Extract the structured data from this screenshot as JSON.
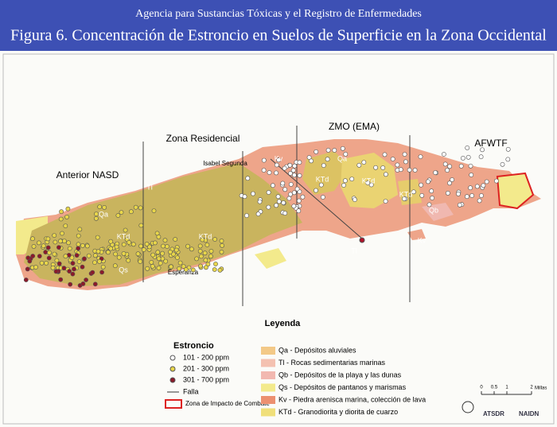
{
  "header": {
    "agency": "Agencia para Sustancias Tóxicas y el Registro de Enfermedades",
    "title": "Figura 6. Concentración de Estroncio en Suelos de Superficie en la Zona Occidental"
  },
  "map": {
    "zones": [
      "Anterior NASD",
      "Zona Residencial",
      "ZMO (EMA)",
      "AFWTF"
    ],
    "places": [
      "Isabel Segunda",
      "Esperanza"
    ],
    "units": [
      "Kv",
      "Qa",
      "KTd",
      "KTd",
      "KTd",
      "Qb",
      "Qa",
      "KTd",
      "KTd",
      "Qs",
      "Tl",
      "Tl",
      "Kv"
    ]
  },
  "legend": {
    "title": "Leyenda",
    "strontium": {
      "title": "Estroncio",
      "items": [
        "101 - 200 ppm",
        "201 - 300 ppm",
        "301 - 700 ppm"
      ],
      "fault": "Falla",
      "impact": "Zona de Impacto de Combate"
    },
    "geology": [
      "Qa - Depósitos aluviales",
      "Tl - Rocas sedimentarias marinas",
      "Qb - Depósitos de la playa y las dunas",
      "Qs - Depósitos de pantanos y marismas",
      "Kv - Piedra arenisca marina, colección de lava",
      "KTd - Granodiorita y diorita de cuarzo"
    ]
  },
  "scale": {
    "ticks": [
      "0",
      "0.5",
      "1",
      "2"
    ],
    "unit": "Millas"
  },
  "logos": [
    "ATSDR",
    "NAIDN"
  ]
}
